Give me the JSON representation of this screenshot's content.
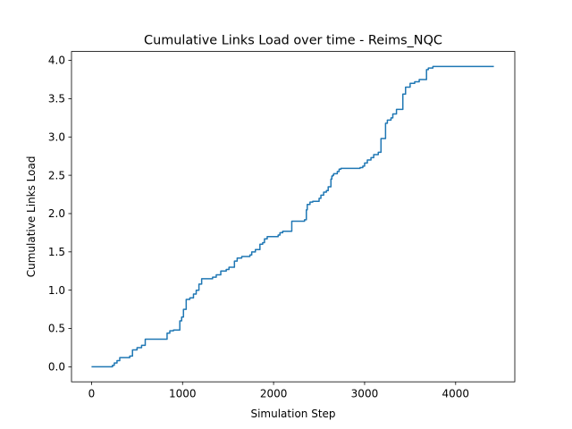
{
  "chart_data": {
    "type": "line",
    "title": "Cumulative Links Load over time - Reims_NQC",
    "xlabel": "Simulation Step",
    "ylabel": "Cumulative Links Load",
    "xlim": [
      -220,
      4650
    ],
    "ylim": [
      -0.196,
      4.116
    ],
    "xticks": [
      0,
      1000,
      2000,
      3000,
      4000
    ],
    "xtick_labels": [
      "0",
      "1000",
      "2000",
      "3000",
      "4000"
    ],
    "yticks": [
      0.0,
      0.5,
      1.0,
      1.5,
      2.0,
      2.5,
      3.0,
      3.5,
      4.0
    ],
    "ytick_labels": [
      "0.0",
      "0.5",
      "1.0",
      "1.5",
      "2.0",
      "2.5",
      "3.0",
      "3.5",
      "4.0"
    ],
    "grid": false,
    "line_color": "#1f77b4",
    "series": [
      {
        "step": true,
        "x": [
          0,
          230,
          250,
          280,
          310,
          420,
          450,
          500,
          550,
          590,
          830,
          860,
          900,
          970,
          990,
          1010,
          1040,
          1080,
          1120,
          1150,
          1180,
          1210,
          1330,
          1370,
          1420,
          1480,
          1510,
          1570,
          1600,
          1650,
          1740,
          1760,
          1800,
          1850,
          1880,
          1900,
          1930,
          1950,
          2050,
          2070,
          2100,
          2190,
          2200,
          2260,
          2340,
          2360,
          2370,
          2400,
          2430,
          2500,
          2520,
          2550,
          2580,
          2600,
          2630,
          2640,
          2650,
          2660,
          2700,
          2720,
          2740,
          2950,
          2980,
          3000,
          3030,
          3070,
          3100,
          3150,
          3180,
          3230,
          3250,
          3290,
          3310,
          3350,
          3420,
          3450,
          3500,
          3550,
          3600,
          3680,
          3700,
          3750,
          4420
        ],
        "y": [
          0.0,
          0.02,
          0.05,
          0.08,
          0.12,
          0.14,
          0.22,
          0.25,
          0.28,
          0.36,
          0.44,
          0.47,
          0.48,
          0.6,
          0.65,
          0.75,
          0.88,
          0.9,
          0.95,
          1.0,
          1.08,
          1.15,
          1.17,
          1.2,
          1.25,
          1.27,
          1.3,
          1.38,
          1.42,
          1.44,
          1.46,
          1.5,
          1.53,
          1.6,
          1.62,
          1.67,
          1.7,
          1.7,
          1.72,
          1.75,
          1.77,
          1.77,
          1.9,
          1.9,
          1.92,
          2.05,
          2.12,
          2.15,
          2.16,
          2.2,
          2.24,
          2.28,
          2.3,
          2.35,
          2.45,
          2.49,
          2.5,
          2.52,
          2.55,
          2.58,
          2.59,
          2.6,
          2.62,
          2.66,
          2.7,
          2.73,
          2.77,
          2.8,
          2.98,
          3.18,
          3.22,
          3.25,
          3.3,
          3.36,
          3.56,
          3.65,
          3.7,
          3.72,
          3.75,
          3.88,
          3.9,
          3.92,
          3.92
        ]
      }
    ]
  }
}
